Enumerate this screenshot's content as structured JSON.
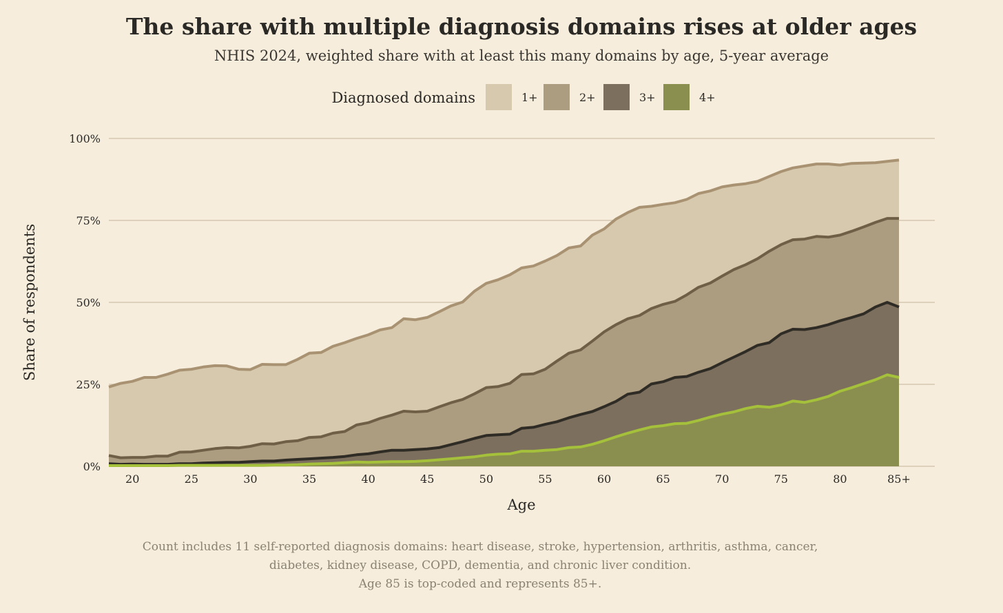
{
  "chart_data": {
    "type": "area",
    "title": "The share with multiple diagnosis domains rises at older ages",
    "subtitle": "NHIS 2024, weighted share with at least this many domains by age, 5-year average",
    "legend": {
      "title": "Diagnosed domains",
      "placement": "top-center"
    },
    "xlabel": "Age",
    "ylabel": "Share of respondents",
    "x_tick_labels": [
      "20",
      "25",
      "30",
      "35",
      "40",
      "45",
      "50",
      "55",
      "60",
      "65",
      "70",
      "75",
      "80",
      "85+"
    ],
    "x_ticks": [
      20,
      25,
      30,
      35,
      40,
      45,
      50,
      55,
      60,
      65,
      70,
      75,
      80,
      85
    ],
    "y_tick_labels": [
      "0%",
      "25%",
      "50%",
      "75%",
      "100%"
    ],
    "y_ticks": [
      0,
      25,
      50,
      75,
      100
    ],
    "xlim": [
      18,
      85
    ],
    "ylim": [
      0,
      100
    ],
    "grid": "horizontal",
    "x": [
      18,
      19,
      20,
      21,
      22,
      23,
      24,
      25,
      26,
      27,
      28,
      29,
      30,
      31,
      32,
      33,
      34,
      35,
      36,
      37,
      38,
      39,
      40,
      41,
      42,
      43,
      44,
      45,
      46,
      47,
      48,
      49,
      50,
      51,
      52,
      53,
      54,
      55,
      56,
      57,
      58,
      59,
      60,
      61,
      62,
      63,
      64,
      65,
      66,
      67,
      68,
      69,
      70,
      71,
      72,
      73,
      74,
      75,
      76,
      77,
      78,
      79,
      80,
      81,
      82,
      83,
      84,
      85
    ],
    "series": [
      {
        "name": "1+",
        "fill": "#d7c9ae",
        "stroke": "#a89272",
        "values": [
          24.2,
          25.3,
          25.9,
          27.1,
          27.1,
          28.1,
          29.3,
          29.6,
          30.3,
          30.7,
          30.6,
          29.6,
          29.5,
          31.1,
          31.0,
          31.0,
          32.6,
          34.5,
          34.7,
          36.6,
          37.7,
          39.0,
          40.1,
          41.6,
          42.3,
          45.0,
          44.7,
          45.4,
          47.1,
          48.9,
          50.1,
          53.4,
          55.8,
          56.9,
          58.4,
          60.5,
          61.1,
          62.6,
          64.3,
          66.6,
          67.2,
          70.5,
          72.4,
          75.4,
          77.4,
          79.0,
          79.3,
          79.9,
          80.4,
          81.4,
          83.2,
          84.0,
          85.2,
          85.8,
          86.2,
          86.9,
          88.4,
          89.9,
          91.0,
          91.6,
          92.2,
          92.2,
          91.9,
          92.4,
          92.5,
          92.6,
          93.0,
          93.4
        ]
      },
      {
        "name": "2+",
        "fill": "#ac9c80",
        "stroke": "#6f5f46",
        "values": [
          3.3,
          2.6,
          2.7,
          2.7,
          3.1,
          3.1,
          4.3,
          4.4,
          4.9,
          5.4,
          5.7,
          5.6,
          6.1,
          6.9,
          6.8,
          7.5,
          7.8,
          8.8,
          9.0,
          10.1,
          10.6,
          12.6,
          13.3,
          14.6,
          15.6,
          16.8,
          16.6,
          16.8,
          18.1,
          19.4,
          20.4,
          22.1,
          24.0,
          24.3,
          25.3,
          28.0,
          28.2,
          29.6,
          32.1,
          34.5,
          35.5,
          38.2,
          41.0,
          43.2,
          45.0,
          46.0,
          48.1,
          49.4,
          50.3,
          52.3,
          54.6,
          55.9,
          58.0,
          60.0,
          61.5,
          63.3,
          65.6,
          67.6,
          69.1,
          69.3,
          70.1,
          69.9,
          70.5,
          71.7,
          73.0,
          74.4,
          75.6,
          75.6
        ]
      },
      {
        "name": "3+",
        "fill": "#7c6f5d",
        "stroke": "#2f2b25",
        "values": [
          0.8,
          0.6,
          0.7,
          0.6,
          0.6,
          0.6,
          0.8,
          0.8,
          1.0,
          1.1,
          1.2,
          1.2,
          1.4,
          1.6,
          1.6,
          1.9,
          2.1,
          2.3,
          2.5,
          2.7,
          3.0,
          3.5,
          3.8,
          4.4,
          4.9,
          4.9,
          5.1,
          5.3,
          5.7,
          6.6,
          7.5,
          8.5,
          9.4,
          9.6,
          9.8,
          11.6,
          11.9,
          12.8,
          13.6,
          14.8,
          15.8,
          16.7,
          18.2,
          19.8,
          22.0,
          22.6,
          25.1,
          25.8,
          27.1,
          27.4,
          28.7,
          29.8,
          31.6,
          33.3,
          35.0,
          36.9,
          37.7,
          40.4,
          41.8,
          41.7,
          42.3,
          43.2,
          44.4,
          45.4,
          46.5,
          48.6,
          50.0,
          48.6
        ]
      },
      {
        "name": "4+",
        "fill": "#8a8e4e",
        "stroke": "#a5c03a",
        "values": [
          0.2,
          0.2,
          0.2,
          0.2,
          0.2,
          0.2,
          0.3,
          0.3,
          0.3,
          0.3,
          0.3,
          0.3,
          0.3,
          0.3,
          0.4,
          0.4,
          0.5,
          0.7,
          0.8,
          0.9,
          1.1,
          1.3,
          1.2,
          1.3,
          1.4,
          1.4,
          1.5,
          1.7,
          2.0,
          2.3,
          2.6,
          2.9,
          3.4,
          3.7,
          3.8,
          4.6,
          4.6,
          4.9,
          5.1,
          5.7,
          5.9,
          6.7,
          7.8,
          9.0,
          10.1,
          11.1,
          12.0,
          12.4,
          13.0,
          13.1,
          14.0,
          15.0,
          15.9,
          16.6,
          17.6,
          18.3,
          18.0,
          18.7,
          19.9,
          19.5,
          20.3,
          21.3,
          22.9,
          24.0,
          25.2,
          26.4,
          27.9,
          27.1
        ]
      }
    ],
    "caption": [
      "Count includes 11 self-reported diagnosis domains: heart disease, stroke, hypertension, arthritis, asthma, cancer,",
      "diabetes, kidney disease, COPD, dementia, and chronic liver condition.",
      "Age 85 is top-coded and represents 85+."
    ],
    "colors": {
      "background": "#f6eddc",
      "grid": "#ddd1bb"
    }
  }
}
